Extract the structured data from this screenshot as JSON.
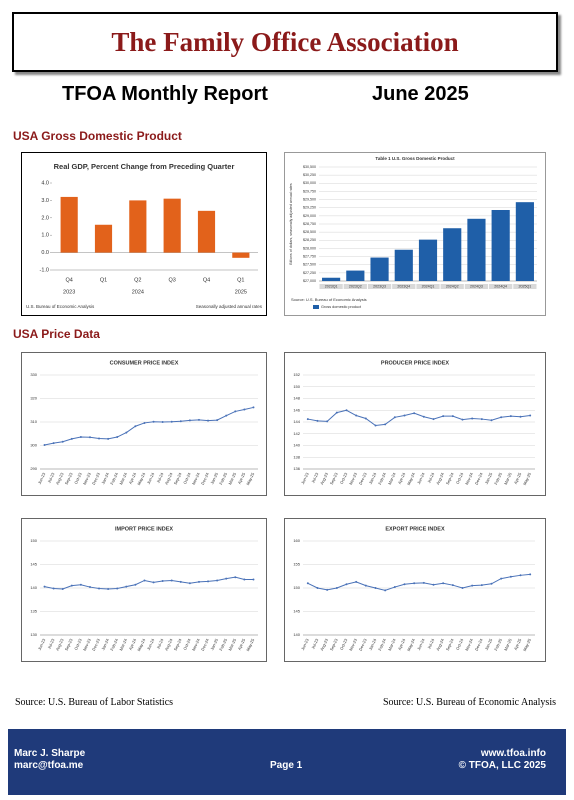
{
  "header": {
    "title": "The Family Office Association"
  },
  "report": {
    "title": "TFOA Monthly Report",
    "date": "June 2025"
  },
  "sections": [
    "USA Gross Domestic Product",
    "USA Price Data"
  ],
  "sources": [
    "Source: U.S. Bureau of Labor Statistics",
    "Source: U.S. Bureau of Economic Analysis"
  ],
  "footer": {
    "name": "Marc J. Sharpe",
    "email": "marc@tfoa.me",
    "page": "Page 1",
    "website": "www.tfoa.info",
    "copyright": "© TFOA, LLC 2025"
  },
  "chart_data": [
    {
      "type": "bar",
      "title": "Real GDP, Percent Change from Preceding Quarter",
      "categories": [
        "Q4",
        "Q1",
        "Q2",
        "Q3",
        "Q4",
        "Q1"
      ],
      "years": [
        "2023",
        null,
        "2024",
        null,
        null,
        "2025"
      ],
      "values": [
        3.2,
        1.6,
        3.0,
        3.1,
        2.4,
        -0.3
      ],
      "color": "#e2621b",
      "ylim": [
        -1,
        4
      ],
      "yticks": [
        {
          "value": -1,
          "label": "-1.0"
        },
        {
          "value": 0,
          "label": "0.0"
        },
        {
          "value": 1,
          "label": "1.0"
        },
        {
          "value": 2,
          "label": "2.0"
        },
        {
          "value": 3,
          "label": "3.0"
        },
        {
          "value": 4,
          "label": "4.0"
        }
      ],
      "grid": false,
      "notes": [
        "U.S. Bureau of Economic Analysis",
        "Seasonally adjusted annual rates"
      ]
    },
    {
      "type": "bar",
      "title": "Table 1 U.S. Gross Domestic Product",
      "y_label": "Billions of dollars, seasonally adjusted annual rates",
      "categories": [
        "2023Q1",
        "2023Q2",
        "2023Q3",
        "2023Q4",
        "2024Q1",
        "2024Q2",
        "2024Q3",
        "2024Q4",
        "2025Q1"
      ],
      "values": [
        27100,
        27320,
        27720,
        27960,
        28270,
        28620,
        28910,
        29180,
        29420
      ],
      "color": "#1f5fa8",
      "ylim": [
        27000,
        30500
      ],
      "yticks": [
        {
          "value": 27000,
          "label": "$27,000"
        },
        {
          "value": 27250,
          "label": "$27,250"
        },
        {
          "value": 27500,
          "label": "$27,500"
        },
        {
          "value": 27750,
          "label": "$27,750"
        },
        {
          "value": 28000,
          "label": "$28,000"
        },
        {
          "value": 28250,
          "label": "$28,250"
        },
        {
          "value": 28500,
          "label": "$28,500"
        },
        {
          "value": 28750,
          "label": "$28,750"
        },
        {
          "value": 29000,
          "label": "$29,000"
        },
        {
          "value": 29250,
          "label": "$29,250"
        },
        {
          "value": 29500,
          "label": "$29,500"
        },
        {
          "value": 29750,
          "label": "$29,750"
        },
        {
          "value": 30000,
          "label": "$30,000"
        },
        {
          "value": 30250,
          "label": "$30,250"
        },
        {
          "value": 30500,
          "label": "$30,500"
        }
      ],
      "grid": true,
      "source": "Source: U.S. Bureau of Economic Analysis",
      "legend": "Gross domestic product"
    },
    {
      "type": "line",
      "title": "CONSUMER PRICE INDEX",
      "categories": [
        "Jun-23",
        "Jul-23",
        "Aug-23",
        "Sep-23",
        "Oct-23",
        "Nov-23",
        "Dec-23",
        "Jan-24",
        "Feb-24",
        "Mar-24",
        "Apr-24",
        "May-24",
        "Jun-24",
        "Jul-24",
        "Aug-24",
        "Sep-24",
        "Oct-24",
        "Nov-24",
        "Dec-24",
        "Jan-25",
        "Feb-25",
        "Mar-25",
        "Apr-25",
        "May-25"
      ],
      "values": [
        300.2,
        301.0,
        301.6,
        302.8,
        303.6,
        303.5,
        303.0,
        302.8,
        303.6,
        305.5,
        308.2,
        309.6,
        310.1,
        310.0,
        310.1,
        310.3,
        310.7,
        310.9,
        310.6,
        310.8,
        312.7,
        314.5,
        315.3,
        316.2
      ],
      "color": "#4a72b8",
      "ylim": [
        290,
        330
      ],
      "yticks": [
        290,
        300,
        310,
        320,
        330
      ],
      "grid": true
    },
    {
      "type": "line",
      "title": "PRODUCER PRICE INDEX",
      "categories": [
        "Jun-23",
        "Jul-23",
        "Aug-23",
        "Sep-23",
        "Oct-23",
        "Nov-23",
        "Dec-23",
        "Jan-24",
        "Feb-24",
        "Mar-24",
        "Apr-24",
        "May-24",
        "Jun-24",
        "Jul-24",
        "Aug-24",
        "Sep-24",
        "Oct-24",
        "Nov-24",
        "Dec-24",
        "Jan-25",
        "Feb-25",
        "Mar-25",
        "Apr-25",
        "May-25"
      ],
      "values": [
        144.5,
        144.2,
        144.1,
        145.6,
        146.0,
        145.1,
        144.6,
        143.4,
        143.6,
        144.8,
        145.1,
        145.5,
        144.9,
        144.5,
        145.0,
        145.0,
        144.4,
        144.6,
        144.5,
        144.3,
        144.8,
        145.0,
        144.9,
        145.1
      ],
      "color": "#4a72b8",
      "ylim": [
        136,
        152
      ],
      "yticks": [
        136,
        138,
        140,
        142,
        144,
        146,
        148,
        150,
        152
      ],
      "grid": true
    },
    {
      "type": "line",
      "title": "IMPORT PRICE INDEX",
      "categories": [
        "Jun-23",
        "Jul-23",
        "Aug-23",
        "Sep-23",
        "Oct-23",
        "Nov-23",
        "Dec-23",
        "Jan-24",
        "Feb-24",
        "Mar-24",
        "Apr-24",
        "May-24",
        "Jun-24",
        "Jul-24",
        "Aug-24",
        "Sep-24",
        "Oct-24",
        "Nov-24",
        "Dec-24",
        "Jan-25",
        "Feb-25",
        "Mar-25",
        "Apr-25",
        "May-25"
      ],
      "values": [
        140.3,
        139.9,
        139.8,
        140.5,
        140.7,
        140.2,
        139.9,
        139.8,
        139.9,
        140.3,
        140.7,
        141.6,
        141.2,
        141.5,
        141.6,
        141.3,
        141.0,
        141.3,
        141.4,
        141.6,
        142.0,
        142.3,
        141.8,
        141.8
      ],
      "color": "#4a72b8",
      "ylim": [
        130,
        150
      ],
      "yticks": [
        130,
        135,
        140,
        145,
        150
      ],
      "grid": true
    },
    {
      "type": "line",
      "title": "EXPORT PRICE INDEX",
      "categories": [
        "Jun-23",
        "Jul-23",
        "Aug-23",
        "Sep-23",
        "Oct-23",
        "Nov-23",
        "Dec-23",
        "Jan-24",
        "Feb-24",
        "Mar-24",
        "Apr-24",
        "May-24",
        "Jun-24",
        "Jul-24",
        "Aug-24",
        "Sep-24",
        "Oct-24",
        "Nov-24",
        "Dec-24",
        "Jan-25",
        "Feb-25",
        "Mar-25",
        "Apr-25",
        "May-25"
      ],
      "values": [
        151.0,
        150.0,
        149.6,
        150.0,
        150.8,
        151.3,
        150.5,
        150.0,
        149.5,
        150.2,
        150.8,
        151.0,
        151.1,
        150.7,
        151.0,
        150.6,
        150.0,
        150.5,
        150.6,
        150.9,
        152.0,
        152.4,
        152.7,
        152.9
      ],
      "color": "#4a72b8",
      "ylim": [
        140,
        160
      ],
      "yticks": [
        140,
        145,
        150,
        155,
        160
      ],
      "grid": true
    }
  ]
}
